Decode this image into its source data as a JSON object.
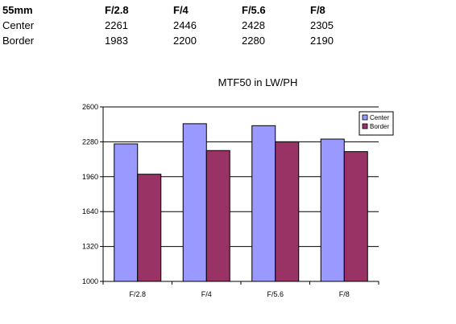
{
  "table": {
    "header": [
      "55mm",
      "F/2.8",
      "F/4",
      "F/5.6",
      "F/8"
    ],
    "rows": [
      {
        "label": "Center",
        "values": [
          "2261",
          "2446",
          "2428",
          "2305"
        ]
      },
      {
        "label": "Border",
        "values": [
          "1983",
          "2200",
          "2280",
          "2190"
        ]
      }
    ]
  },
  "chart_data": {
    "type": "bar",
    "title": "MTF50 in LW/PH",
    "xlabel": "",
    "ylabel": "",
    "categories": [
      "F/2.8",
      "F/4",
      "F/5.6",
      "F/8"
    ],
    "series": [
      {
        "name": "Center",
        "values": [
          2261,
          2446,
          2428,
          2305
        ],
        "color": "#9999ff"
      },
      {
        "name": "Border",
        "values": [
          1983,
          2200,
          2280,
          2190
        ],
        "color": "#993366"
      }
    ],
    "ylim": [
      1000,
      2600
    ],
    "yticks": [
      "1000",
      "1320",
      "1640",
      "1960",
      "2280",
      "2600"
    ],
    "grid": true,
    "legend": "top-right"
  }
}
